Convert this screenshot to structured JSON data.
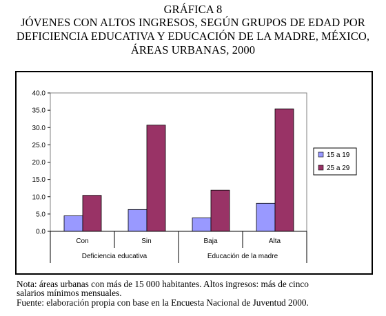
{
  "header": {
    "line1": "GRÁFICA 8",
    "line2": "JÓVENES CON ALTOS INGRESOS, SEGÚN GRUPOS DE EDAD POR",
    "line3": "DEFICIENCIA EDUCATIVA Y EDUCACIÓN DE LA MADRE, MÉXICO,",
    "line4": "ÁREAS URBANAS, 2000"
  },
  "footer": {
    "note1": "Nota: áreas urbanas con más de 15 000 habitantes. Altos ingresos: más de cinco",
    "note2": "salarios mínimos mensuales.",
    "source": "Fuente: elaboración propia con base en la Encuesta Nacional de Juventud 2000."
  },
  "chart_data": {
    "type": "bar",
    "categories": [
      "Con",
      "Sin",
      "Baja",
      "Alta"
    ],
    "groups": [
      {
        "label": "Deficiencia educativa",
        "categories": [
          "Con",
          "Sin"
        ]
      },
      {
        "label": "Educación de la madre",
        "categories": [
          "Baja",
          "Alta"
        ]
      }
    ],
    "series": [
      {
        "name": "15 a 19",
        "values": [
          4.5,
          6.3,
          3.9,
          8.1
        ],
        "color": "#9999ff"
      },
      {
        "name": "25 a 29",
        "values": [
          10.4,
          30.7,
          11.9,
          35.4
        ],
        "color": "#993366"
      }
    ],
    "y_ticks": [
      "0.0",
      "5.0",
      "10.0",
      "15.0",
      "20.0",
      "25.0",
      "30.0",
      "35.0",
      "40.0"
    ],
    "ylim": [
      0,
      40
    ],
    "grid": false,
    "legend_position": "right",
    "plot_background": "#ffffff"
  }
}
